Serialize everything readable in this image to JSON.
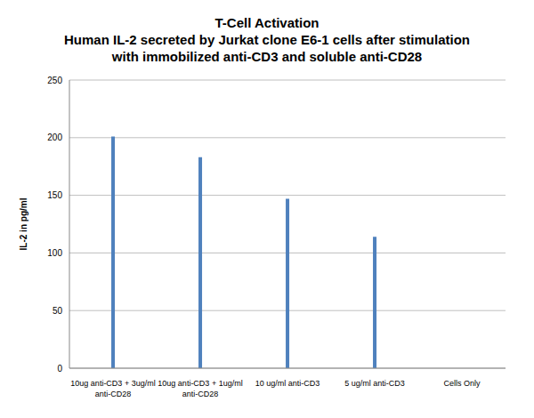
{
  "chart_data": {
    "type": "bar",
    "title": "T-Cell Activation",
    "subtitle": "Human IL-2 secreted by Jurkat clone E6-1 cells after stimulation\nwith immobilized anti-CD3 and soluble anti-CD28",
    "y_label": "IL-2 in pg/ml",
    "categories": [
      "10ug anti-CD3 + 3ug/ml anti-CD28",
      "10ug anti-CD3 + 1ug/ml anti-CD28",
      "10 ug/ml anti-CD3",
      "5 ug/ml anti-CD3",
      "Cells Only"
    ],
    "values": [
      201,
      183,
      147,
      114,
      0
    ],
    "color": "#4f81bd",
    "ylim": [
      0,
      250
    ],
    "yticks": [
      0,
      50,
      100,
      150,
      200,
      250
    ],
    "grid": true
  }
}
